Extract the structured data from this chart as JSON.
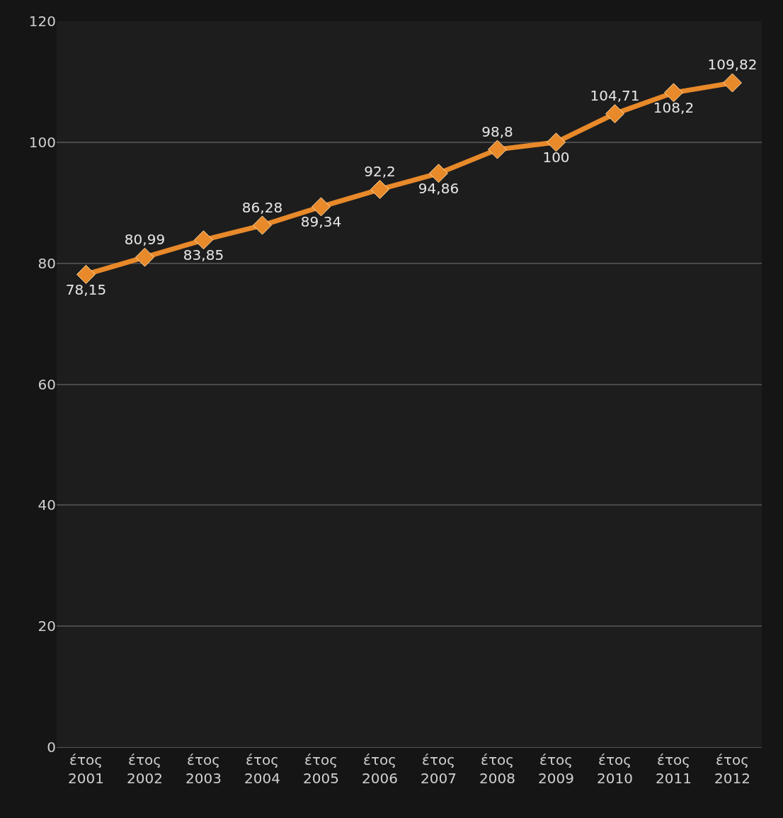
{
  "chart_data": {
    "type": "line",
    "categories": [
      "έτος 2001",
      "έτος 2002",
      "έτος 2003",
      "έτος 2004",
      "έτος 2005",
      "έτος 2006",
      "έτος 2007",
      "έτος 2008",
      "έτος 2009",
      "έτος 2010",
      "έτος 2011",
      "έτος 2012"
    ],
    "series": [
      {
        "color": "#e8892a",
        "values": [
          78.15,
          80.99,
          83.85,
          86.28,
          89.34,
          92.2,
          94.86,
          98.8,
          100,
          104.71,
          108.2,
          109.82
        ],
        "value_labels": [
          "78,15",
          "80,99",
          "83,85",
          "86,28",
          "89,34",
          "92,2",
          "94,86",
          "98,8",
          "100",
          "104,71",
          "108,2",
          "109,82"
        ]
      }
    ],
    "ylim": [
      0,
      120
    ],
    "yticks": [
      0,
      20,
      40,
      60,
      80,
      100,
      120
    ],
    "grid": "y",
    "marker": "diamond",
    "line_style": "solid",
    "legend": false
  }
}
